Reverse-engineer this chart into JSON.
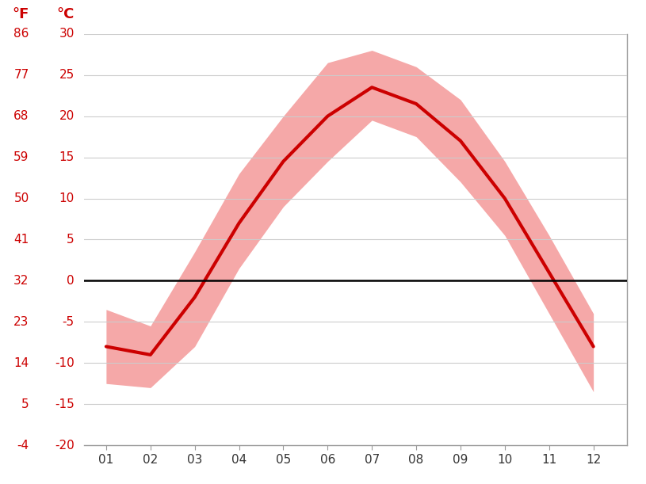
{
  "months": [
    1,
    2,
    3,
    4,
    5,
    6,
    7,
    8,
    9,
    10,
    11,
    12
  ],
  "month_labels": [
    "01",
    "02",
    "03",
    "04",
    "05",
    "06",
    "07",
    "08",
    "09",
    "10",
    "11",
    "12"
  ],
  "avg_temp_c": [
    -8.0,
    -9.0,
    -2.0,
    7.0,
    14.5,
    20.0,
    23.5,
    21.5,
    17.0,
    10.0,
    1.0,
    -8.0
  ],
  "max_temp_c": [
    -3.5,
    -5.5,
    3.5,
    13.0,
    20.0,
    26.5,
    28.0,
    26.0,
    22.0,
    14.5,
    5.5,
    -4.0
  ],
  "min_temp_c": [
    -12.5,
    -13.0,
    -8.0,
    1.5,
    9.0,
    14.5,
    19.5,
    17.5,
    12.0,
    5.5,
    -4.0,
    -13.5
  ],
  "ylim_c": [
    -20,
    30
  ],
  "yticks_c": [
    -20,
    -15,
    -10,
    -5,
    0,
    5,
    10,
    15,
    20,
    25,
    30
  ],
  "yticks_f": [
    -4,
    5,
    14,
    23,
    32,
    41,
    50,
    59,
    68,
    77,
    86
  ],
  "line_color": "#cc0000",
  "band_color": "#f5a8a8",
  "zero_line_color": "#000000",
  "grid_color": "#cccccc",
  "label_color": "#cc0000",
  "tick_color": "#cc0000",
  "background_color": "#ffffff",
  "line_width": 3.0,
  "band_alpha": 1.0,
  "figsize": [
    8.15,
    6.11
  ],
  "dpi": 100
}
